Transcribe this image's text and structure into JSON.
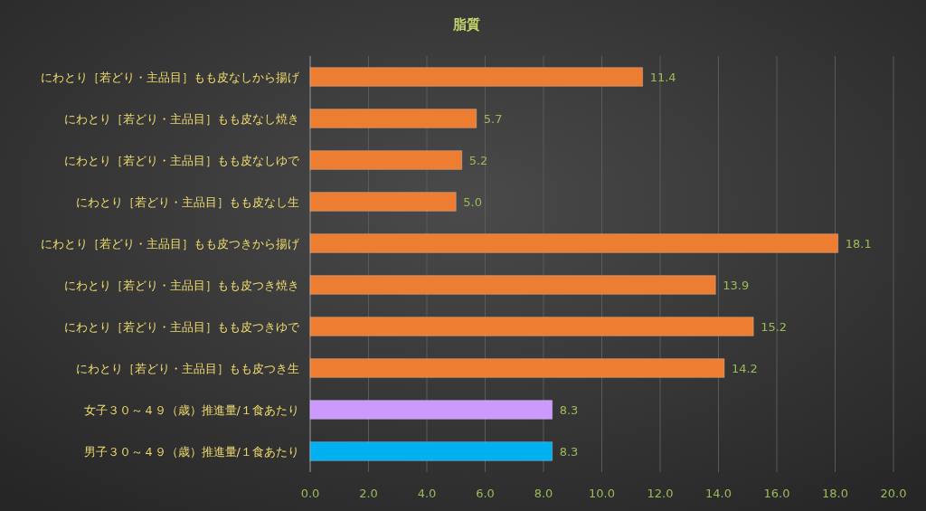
{
  "chart_data": {
    "type": "bar",
    "orientation": "horizontal",
    "title": "脂質",
    "categories": [
      "にわとり［若どり・主品目］もも皮なしから揚げ",
      "にわとり［若どり・主品目］もも皮なし焼き",
      "にわとり［若どり・主品目］もも皮なしゆで",
      "にわとり［若どり・主品目］もも皮なし生",
      "にわとり［若どり・主品目］もも皮つきから揚げ",
      "にわとり［若どり・主品目］もも皮つき焼き",
      "にわとり［若どり・主品目］もも皮つきゆで",
      "にわとり［若どり・主品目］もも皮つき生",
      "女子３０～４９（歳）推進量/１食あたり",
      "男子３０～４９（歳）推進量/１食あたり"
    ],
    "values": [
      11.4,
      5.7,
      5.2,
      5.0,
      18.1,
      13.9,
      15.2,
      14.2,
      8.3,
      8.3
    ],
    "value_labels": [
      "11.4",
      "5.7",
      "5.2",
      "5.0",
      "18.1",
      "13.9",
      "15.2",
      "14.2",
      "8.3",
      "8.3"
    ],
    "colors": [
      "#ed7d31",
      "#ed7d31",
      "#ed7d31",
      "#ed7d31",
      "#ed7d31",
      "#ed7d31",
      "#ed7d31",
      "#ed7d31",
      "#cc99ff",
      "#00b0f0"
    ],
    "xlim": [
      0,
      20
    ],
    "xticks": [
      {
        "value": 0,
        "label": "0.0"
      },
      {
        "value": 2,
        "label": "2.0"
      },
      {
        "value": 4,
        "label": "4.0"
      },
      {
        "value": 6,
        "label": "6.0"
      },
      {
        "value": 8,
        "label": "8.0"
      },
      {
        "value": 10,
        "label": "10.0"
      },
      {
        "value": 12,
        "label": "12.0"
      },
      {
        "value": 14,
        "label": "14.0"
      },
      {
        "value": 16,
        "label": "16.0"
      },
      {
        "value": 18,
        "label": "18.0"
      },
      {
        "value": 20,
        "label": "20.0"
      }
    ],
    "grid": "x"
  }
}
